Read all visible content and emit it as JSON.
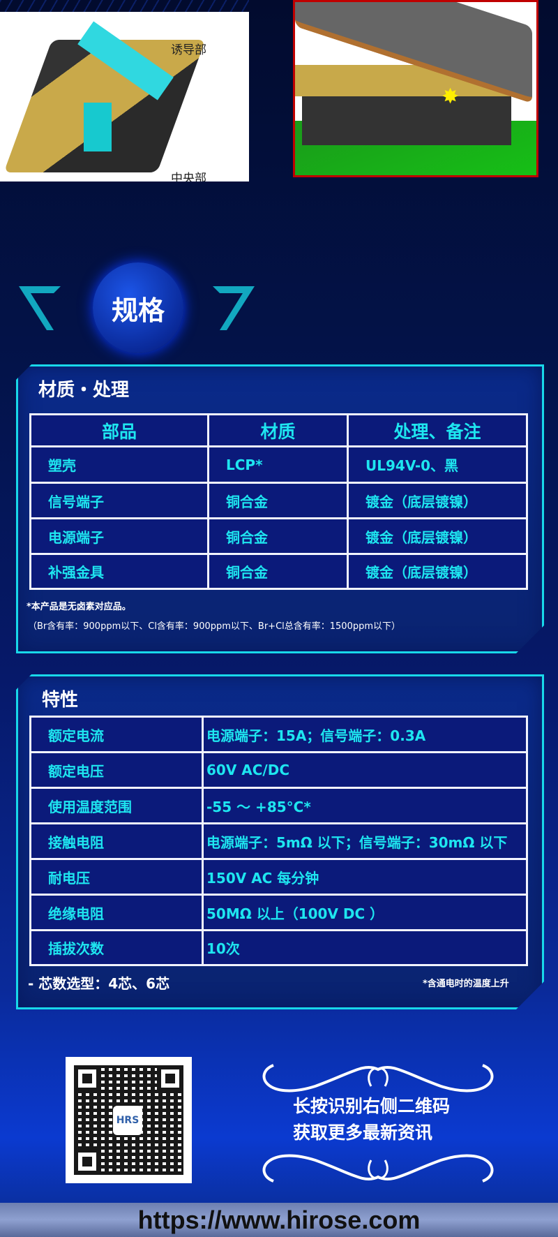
{
  "images": {
    "left_callouts": [
      "诱导部",
      "中央部"
    ]
  },
  "section_badge": "规格",
  "materials": {
    "title": "材质・处理",
    "headers": [
      "部品",
      "材质",
      "处理、备注"
    ],
    "rows": [
      [
        "塑壳",
        "LCP*",
        "UL94V-0、黑"
      ],
      [
        "信号端子",
        "铜合金",
        "镀金（底层镀镍）"
      ],
      [
        "电源端子",
        "铜合金",
        "镀金（底层镀镍）"
      ],
      [
        "补强金具",
        "铜合金",
        "镀金（底层镀镍）"
      ]
    ],
    "notes": [
      "*本产品是无卤素对应品。",
      "（Br含有率：900ppm以下、Cl含有率：900ppm以下、Br+Cl总含有率：1500ppm以下）"
    ]
  },
  "characteristics": {
    "title": "特性",
    "rows": [
      [
        "额定电流",
        "电源端子：15A；信号端子：0.3A"
      ],
      [
        "额定电压",
        "60V AC/DC"
      ],
      [
        "使用温度范围",
        "-55 ～ +85°C*"
      ],
      [
        "接触电阻",
        "电源端子：5mΩ 以下；信号端子：30mΩ 以下"
      ],
      [
        "耐电压",
        "150V AC 每分钟"
      ],
      [
        "绝缘电阻",
        "50MΩ 以上（100V DC ）"
      ],
      [
        "插拔次数",
        "10次"
      ]
    ],
    "core_note": "- 芯数选型：4芯、6芯",
    "temp_note": "*含通电时的温度上升"
  },
  "qr": {
    "logo": "HRS"
  },
  "cta": [
    "长按识别右侧二维码",
    "获取更多最新资讯"
  ],
  "url": "https://www.hirose.com",
  "colors": {
    "accent": "#1ee6f0",
    "border": "#18d8ea",
    "cell_bg": "#0b1a7a",
    "frame_red": "#c00000"
  }
}
